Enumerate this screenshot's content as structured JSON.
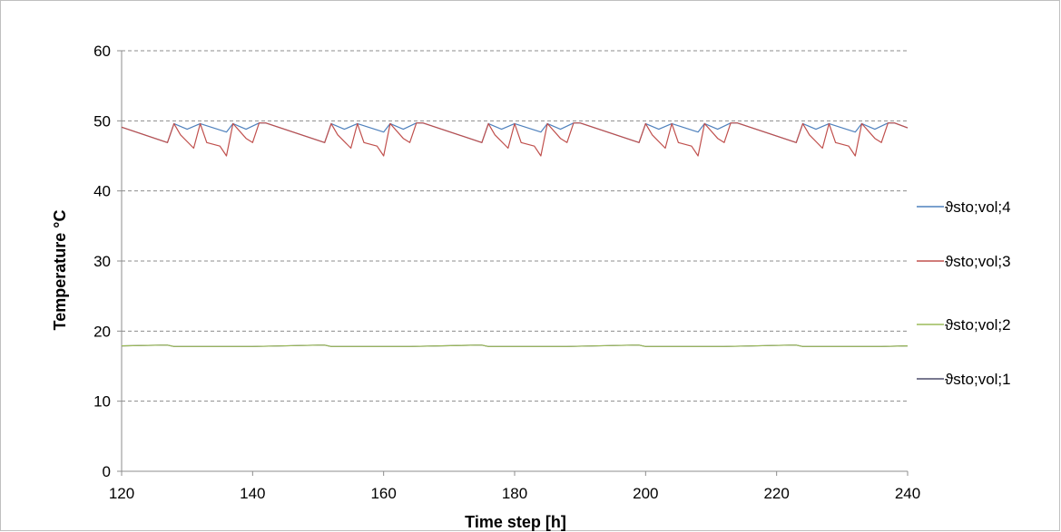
{
  "chart_data": {
    "type": "line",
    "xlabel": "Time step [h]",
    "ylabel": "Temperature °C",
    "xlim": [
      120,
      240
    ],
    "ylim": [
      0,
      60
    ],
    "xticks": [
      120,
      140,
      160,
      180,
      200,
      220,
      240
    ],
    "yticks": [
      0,
      10,
      20,
      30,
      40,
      50,
      60
    ],
    "grid": "horizontal dashed",
    "legend_position": "right",
    "series": [
      {
        "name": "ϑsto;vol;4",
        "color": "#4f81bd",
        "x": [
          120,
          127,
          128,
          130,
          132,
          134,
          136,
          137,
          139,
          141,
          142,
          151,
          152,
          154,
          156,
          158,
          160,
          161,
          163,
          165,
          166,
          175,
          176,
          178,
          180,
          182,
          184,
          185,
          187,
          189,
          190,
          199,
          200,
          202,
          204,
          206,
          208,
          209,
          211,
          213,
          214,
          223,
          224,
          226,
          228,
          230,
          232,
          233,
          235,
          237,
          238,
          240
        ],
        "y": [
          49.1,
          46.9,
          49.6,
          48.8,
          49.6,
          49.0,
          48.4,
          49.6,
          48.8,
          49.7,
          49.7,
          46.9,
          49.6,
          48.8,
          49.6,
          49.0,
          48.4,
          49.6,
          48.8,
          49.7,
          49.7,
          46.9,
          49.6,
          48.8,
          49.6,
          49.0,
          48.4,
          49.6,
          48.8,
          49.7,
          49.7,
          46.9,
          49.6,
          48.8,
          49.6,
          49.0,
          48.4,
          49.6,
          48.8,
          49.7,
          49.7,
          46.9,
          49.6,
          48.8,
          49.6,
          49.0,
          48.4,
          49.6,
          48.8,
          49.7,
          49.7,
          49.0
        ]
      },
      {
        "name": "ϑsto;vol;3",
        "color": "#c0504d",
        "x": [
          120,
          127,
          128,
          129,
          131,
          132,
          133,
          135,
          136,
          137,
          139,
          140,
          141,
          142,
          151,
          152,
          153,
          155,
          156,
          157,
          159,
          160,
          161,
          163,
          164,
          165,
          166,
          175,
          176,
          177,
          179,
          180,
          181,
          183,
          184,
          185,
          187,
          188,
          189,
          190,
          199,
          200,
          201,
          203,
          204,
          205,
          207,
          208,
          209,
          211,
          212,
          213,
          214,
          223,
          224,
          225,
          227,
          228,
          229,
          231,
          232,
          233,
          235,
          236,
          237,
          238,
          240
        ],
        "y": [
          49.1,
          46.9,
          49.6,
          48.0,
          46.1,
          49.6,
          46.9,
          46.4,
          45.0,
          49.6,
          47.5,
          46.9,
          49.7,
          49.7,
          46.9,
          49.6,
          48.0,
          46.1,
          49.6,
          46.9,
          46.4,
          45.0,
          49.6,
          47.5,
          46.9,
          49.7,
          49.7,
          46.9,
          49.6,
          48.0,
          46.1,
          49.6,
          46.9,
          46.4,
          45.0,
          49.6,
          47.5,
          46.9,
          49.7,
          49.7,
          46.9,
          49.6,
          48.0,
          46.1,
          49.6,
          46.9,
          46.4,
          45.0,
          49.6,
          47.5,
          46.9,
          49.7,
          49.7,
          46.9,
          49.6,
          48.0,
          46.1,
          49.6,
          46.9,
          46.4,
          45.0,
          49.6,
          47.5,
          46.9,
          49.7,
          49.7,
          49.0
        ]
      },
      {
        "name": "ϑsto;vol;2",
        "color": "#9bbb59",
        "x": [
          120,
          126,
          127,
          128,
          140,
          150,
          151,
          152,
          164,
          174,
          175,
          176,
          188,
          198,
          199,
          200,
          212,
          222,
          223,
          224,
          236,
          240
        ],
        "y": [
          17.9,
          18.0,
          18.0,
          17.8,
          17.8,
          18.0,
          18.0,
          17.8,
          17.8,
          18.0,
          18.0,
          17.8,
          17.8,
          18.0,
          18.0,
          17.8,
          17.8,
          18.0,
          18.0,
          17.8,
          17.8,
          17.9
        ]
      },
      {
        "name": "ϑsto;vol;1",
        "color": "#4d4d6b",
        "x": [
          120,
          126,
          127,
          128,
          140,
          150,
          151,
          152,
          164,
          174,
          175,
          176,
          188,
          198,
          199,
          200,
          212,
          222,
          223,
          224,
          236,
          240
        ],
        "y": [
          17.9,
          18.0,
          18.0,
          17.8,
          17.8,
          18.0,
          18.0,
          17.8,
          17.8,
          18.0,
          18.0,
          17.8,
          17.8,
          18.0,
          18.0,
          17.8,
          17.8,
          18.0,
          18.0,
          17.8,
          17.8,
          17.9
        ]
      }
    ]
  }
}
